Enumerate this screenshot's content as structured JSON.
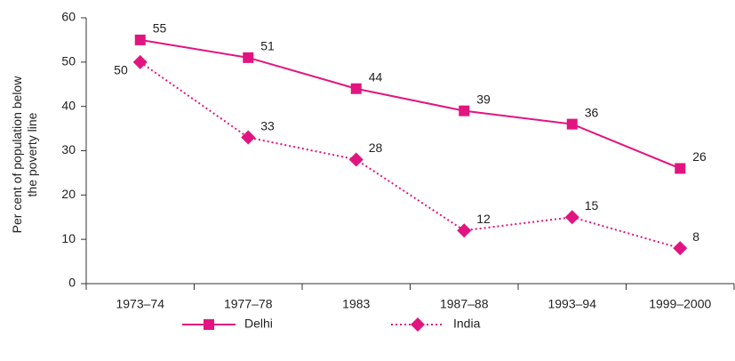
{
  "chart_data": {
    "type": "line",
    "y_label": "Per cent of population below the poverty line",
    "categories": [
      "1973–74",
      "1977–78",
      "1983",
      "1987–88",
      "1993–94",
      "1999–2000"
    ],
    "series": [
      {
        "name": "Delhi",
        "color": "#e2147f",
        "marker": "square",
        "linestyle": "solid",
        "values": [
          55,
          51,
          44,
          39,
          36,
          26
        ]
      },
      {
        "name": "India",
        "color": "#e2147f",
        "marker": "diamond",
        "linestyle": "dotted",
        "values": [
          50,
          33,
          28,
          12,
          15,
          8
        ]
      }
    ],
    "ylim": [
      0,
      60
    ],
    "yticks": [
      0,
      10,
      20,
      30,
      40,
      50,
      60
    ],
    "grid": false
  }
}
